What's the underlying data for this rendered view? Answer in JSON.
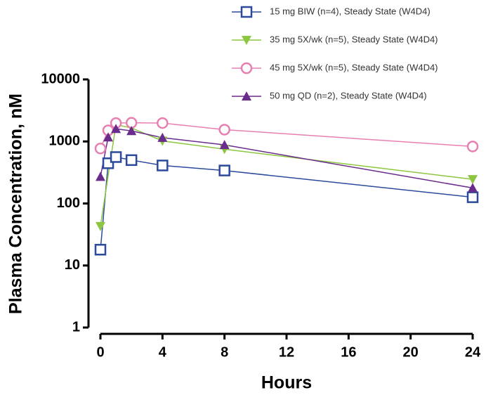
{
  "chart_data": {
    "type": "line",
    "x_label": "Hours",
    "y_label": "Plasma Concentration, nM",
    "ylog": true,
    "xlim": [
      0,
      24
    ],
    "xticks": [
      0,
      4,
      8,
      12,
      16,
      20,
      24
    ],
    "ylim": [
      1,
      10000
    ],
    "yticks": [
      1,
      10,
      100,
      1000,
      10000
    ],
    "series": [
      {
        "name": "15 mg BIW (n=4), Steady State (W4D4)",
        "color": "#2b4a9c",
        "marker": "square-open",
        "x": [
          0,
          0.5,
          1,
          2,
          4,
          8,
          24
        ],
        "values": [
          18,
          445,
          560,
          500,
          410,
          340,
          126
        ]
      },
      {
        "name": "35 mg 5X/wk (n=5), Steady State (W4D4)",
        "color": "#8dc63f",
        "marker": "triangle-down",
        "x": [
          0,
          1,
          2,
          4,
          8,
          24
        ],
        "values": [
          43,
          1870,
          1650,
          1020,
          750,
          245
        ]
      },
      {
        "name": "45 mg 5X/wk (n=5), Steady State (W4D4)",
        "color": "#e77fb1",
        "marker": "circle-open",
        "x": [
          0,
          0.5,
          1,
          2,
          4,
          8,
          24
        ],
        "values": [
          770,
          1510,
          1980,
          2000,
          1980,
          1550,
          830
        ]
      },
      {
        "name": "50 mg QD (n=2), Steady State (W4D4)",
        "color": "#6a2c8c",
        "marker": "triangle-up",
        "x": [
          0,
          0.5,
          1,
          2,
          4,
          8,
          24
        ],
        "values": [
          270,
          1170,
          1600,
          1480,
          1150,
          880,
          178
        ]
      }
    ]
  }
}
